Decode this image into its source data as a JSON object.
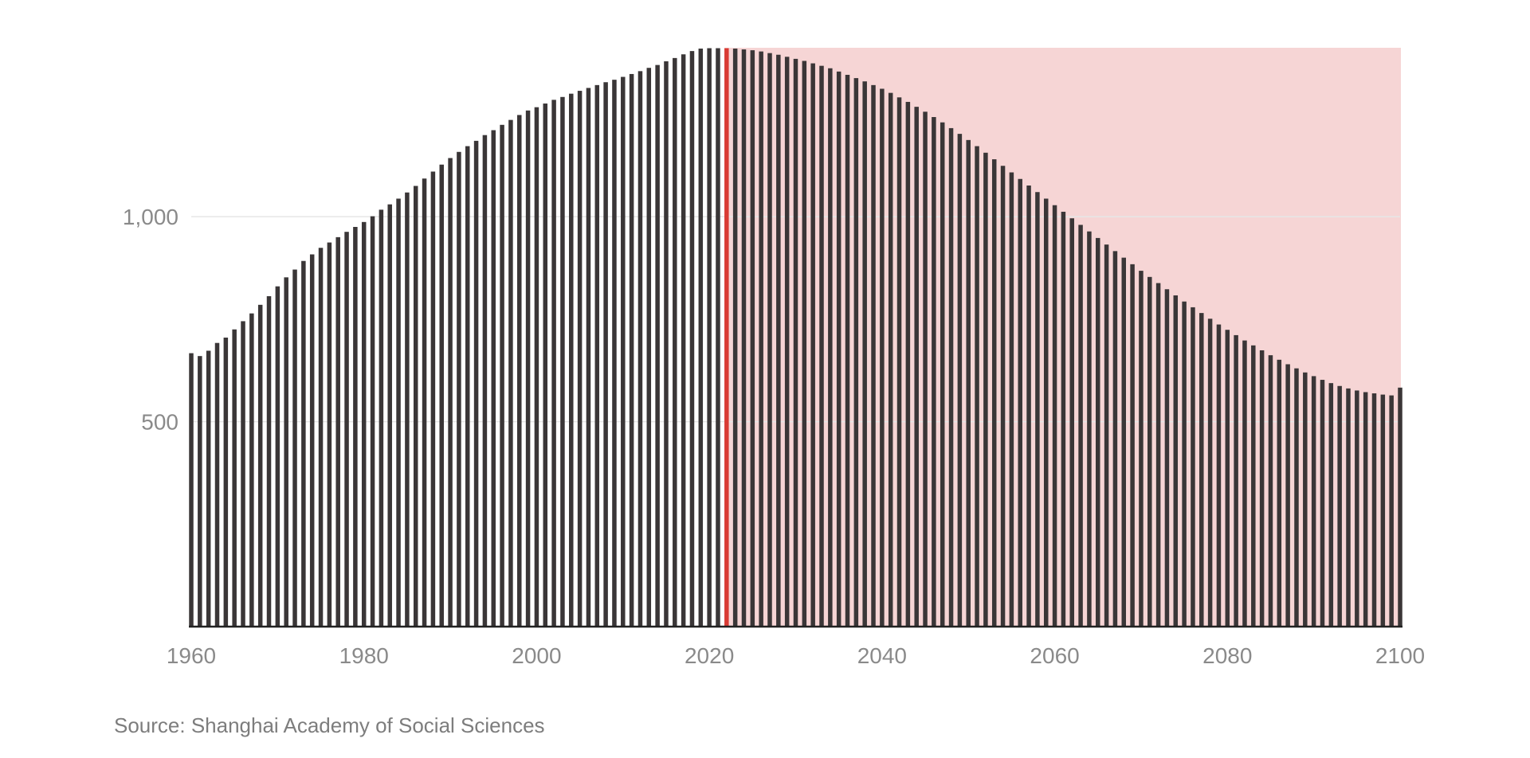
{
  "chart_data": {
    "type": "bar",
    "title": "",
    "xlabel": "",
    "ylabel": "",
    "xlim": [
      1960,
      2100
    ],
    "ylim": [
      0,
      1412
    ],
    "x_ticks": [
      "1960",
      "1980",
      "2000",
      "2020",
      "2040",
      "2060",
      "2080",
      "2100"
    ],
    "y_ticks": [
      "500",
      "1,000"
    ],
    "y_tick_values": [
      500,
      1000
    ],
    "grid": true,
    "highlight_year": 2022,
    "projection_region": {
      "start": 2022,
      "end": 2100,
      "upper": 1412
    },
    "colors": {
      "bar": "#3a3637",
      "highlight": "#d93b34",
      "projection_fill": "#f6d5d5",
      "grid": "#e6e6e6",
      "axis": "#222222",
      "tick_text": "#8a8a8a"
    },
    "series": [
      {
        "values": [
          667,
          660,
          673,
          692,
          705,
          725,
          745,
          764,
          785,
          806,
          830,
          852,
          871,
          892,
          908,
          924,
          937,
          950,
          963,
          975,
          987,
          1001,
          1017,
          1030,
          1044,
          1059,
          1075,
          1093,
          1110,
          1127,
          1143,
          1158,
          1172,
          1185,
          1199,
          1211,
          1224,
          1236,
          1248,
          1259,
          1267,
          1276,
          1285,
          1292,
          1300,
          1307,
          1314,
          1321,
          1328,
          1334,
          1341,
          1348,
          1355,
          1363,
          1370,
          1379,
          1387,
          1396,
          1404,
          1410,
          1411,
          1411,
          1411,
          1410,
          1408,
          1406,
          1403,
          1399,
          1395,
          1390,
          1385,
          1380,
          1374,
          1368,
          1362,
          1354,
          1346,
          1338,
          1330,
          1321,
          1312,
          1302,
          1291,
          1280,
          1268,
          1256,
          1243,
          1230,
          1216,
          1202,
          1187,
          1172,
          1156,
          1140,
          1124,
          1108,
          1092,
          1076,
          1060,
          1044,
          1028,
          1012,
          996,
          980,
          964,
          948,
          932,
          916,
          900,
          884,
          868,
          853,
          838,
          823,
          808,
          793,
          779,
          765,
          751,
          737,
          724,
          711,
          698,
          686,
          674,
          662,
          651,
          640,
          630,
          620,
          611,
          602,
          594,
          587,
          581,
          576,
          572,
          569,
          566,
          564,
          583
        ]
      }
    ]
  },
  "source": "Source: Shanghai Academy of Social Sciences"
}
